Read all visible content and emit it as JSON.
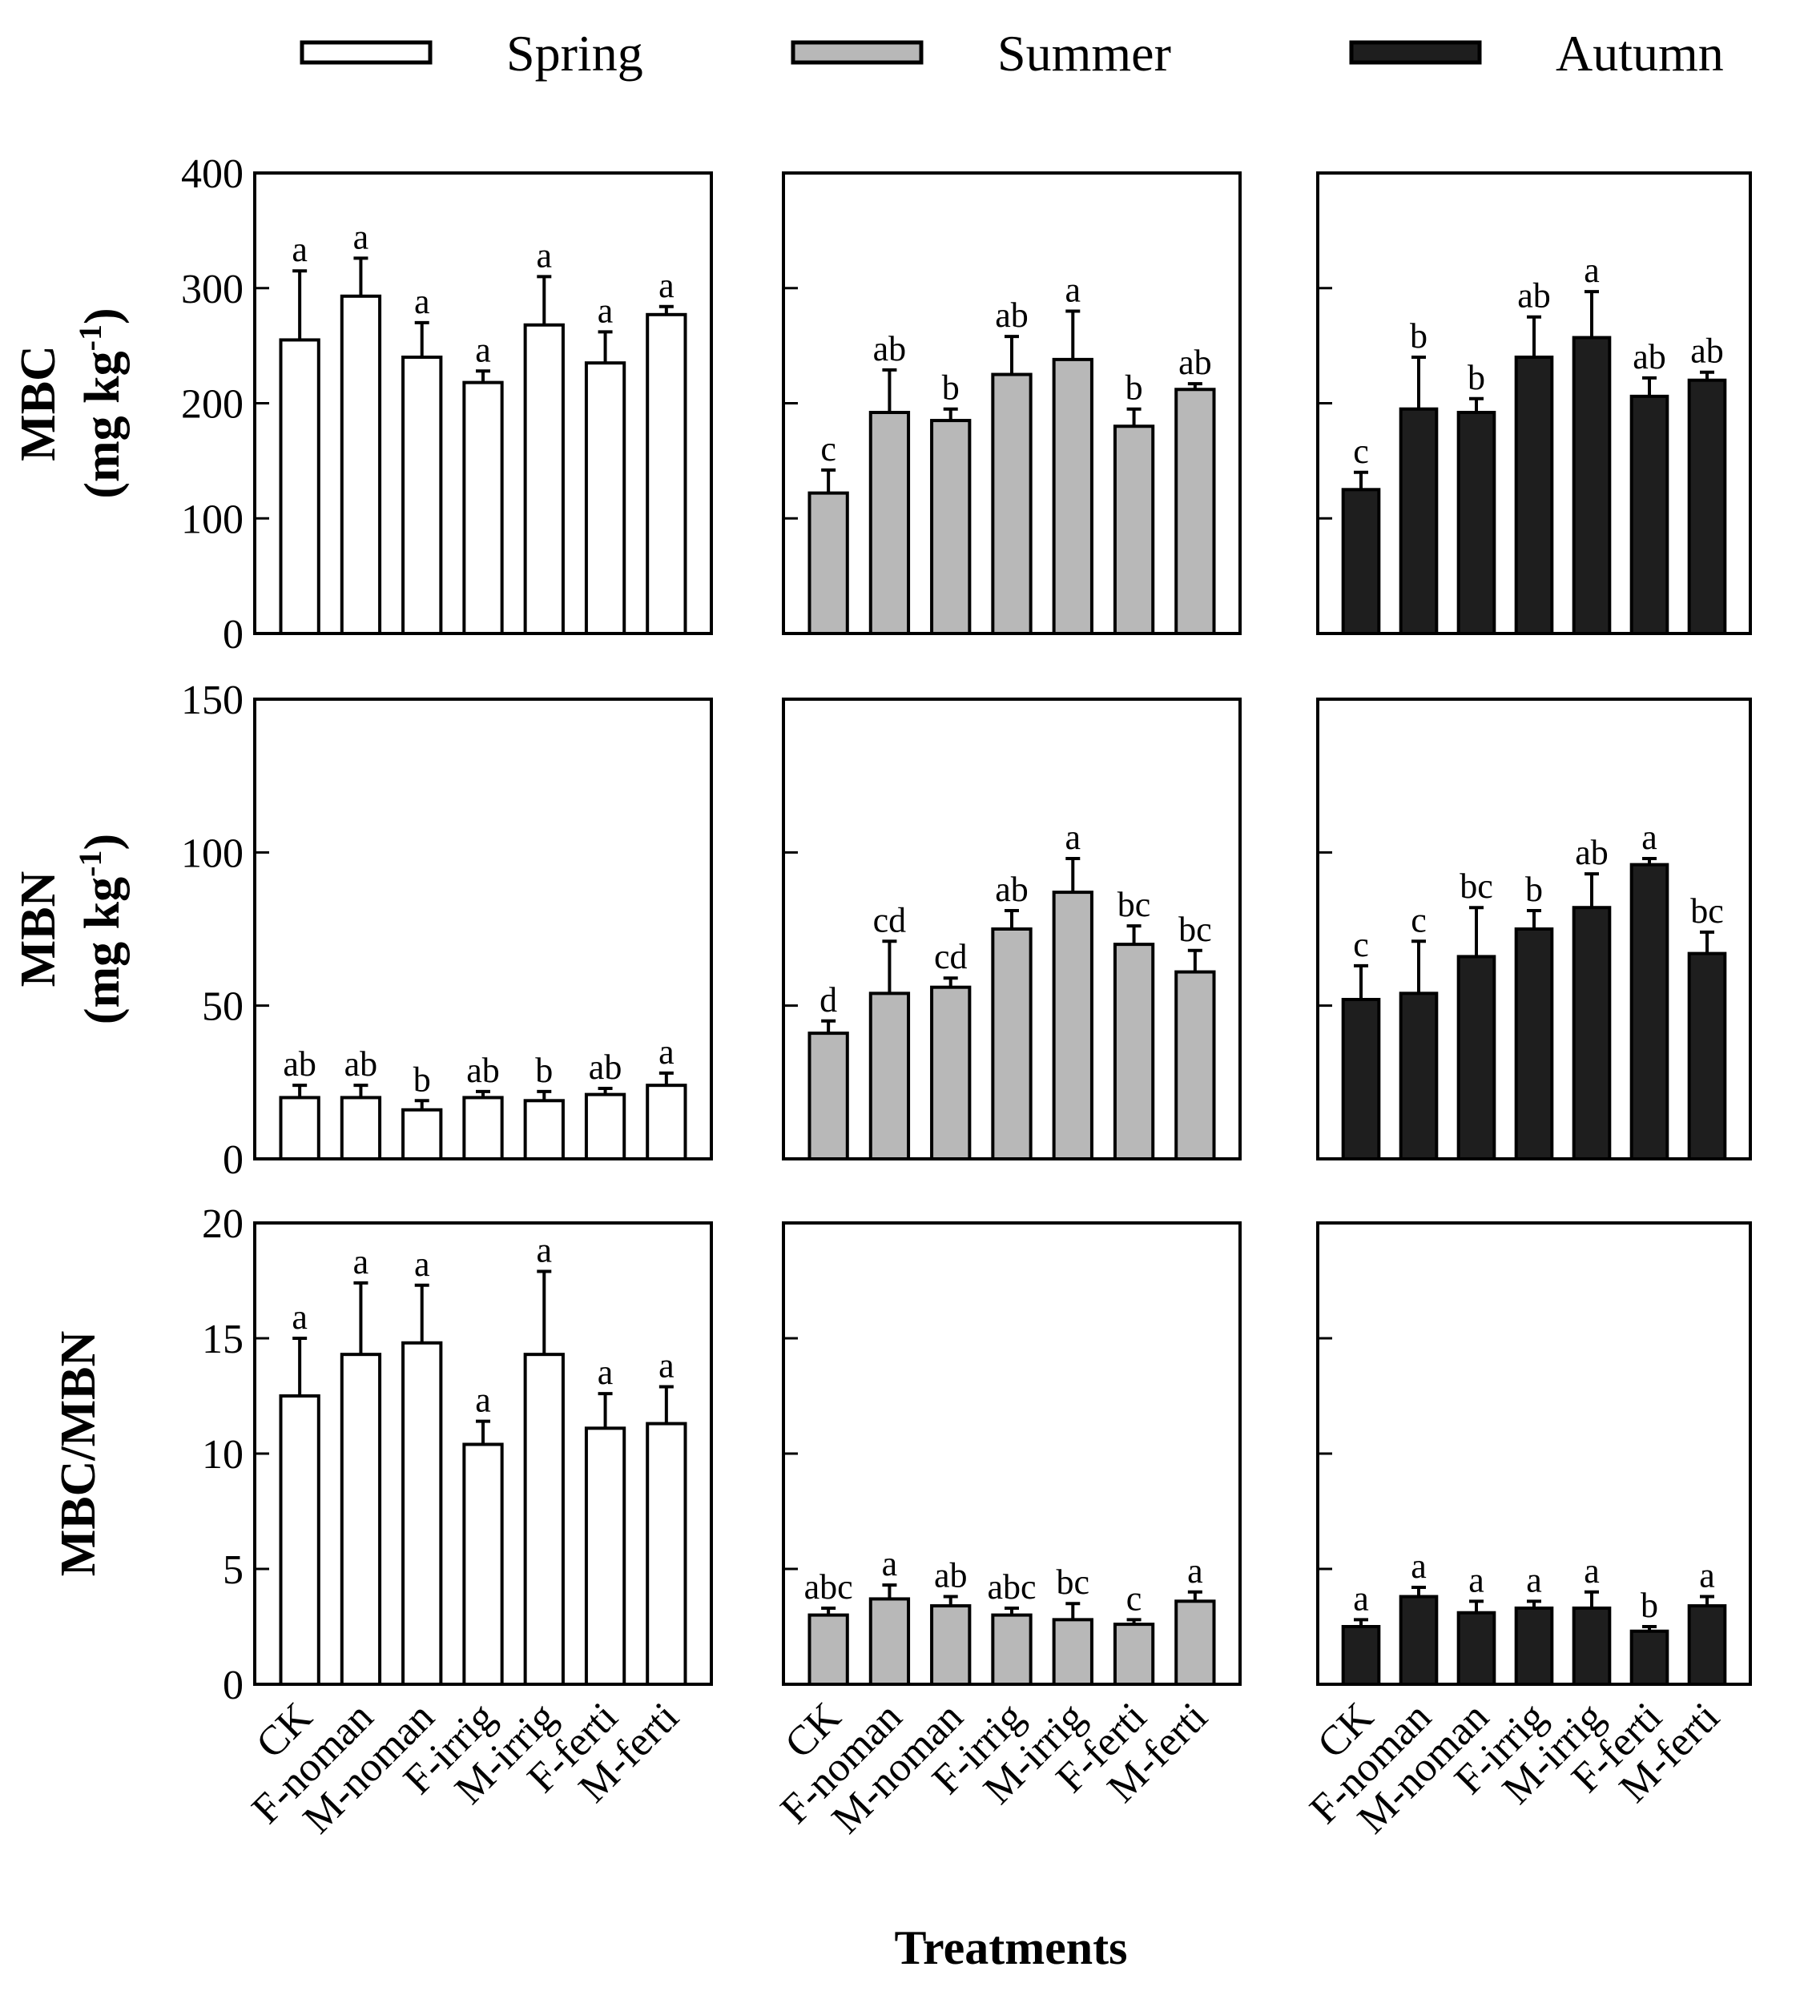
{
  "chart_data": {
    "type": "bar",
    "xlabel": "Treatments",
    "categories": [
      "CK",
      "F-noman",
      "M-noman",
      "F-irrig",
      "M-irrig",
      "F-ferti",
      "M-ferti"
    ],
    "legend": [
      {
        "name": "Spring",
        "color": "#ffffff"
      },
      {
        "name": "Summer",
        "color": "#b8b8b8"
      },
      {
        "name": "Autumn",
        "color": "#1e1e1e"
      }
    ],
    "rows": [
      {
        "label": "MBC",
        "unit": "(mg kg-1)",
        "unit_prefix": "(mg kg",
        "unit_sup": "-1",
        "unit_suffix": ")",
        "ylim": [
          0,
          400
        ],
        "ticks": [
          "0",
          "100",
          "200",
          "300",
          "400"
        ],
        "series": [
          {
            "name": "Spring",
            "values": [
              255,
              293,
              240,
              218,
              268,
              235,
              277
            ],
            "errors": [
              60,
              33,
              30,
              10,
              42,
              27,
              7
            ],
            "letters": [
              "a",
              "a",
              "a",
              "a",
              "a",
              "a",
              "a"
            ]
          },
          {
            "name": "Summer",
            "values": [
              122,
              192,
              185,
              225,
              238,
              180,
              212
            ],
            "errors": [
              20,
              37,
              10,
              33,
              42,
              15,
              5
            ],
            "letters": [
              "c",
              "ab",
              "b",
              "ab",
              "a",
              "b",
              "ab"
            ]
          },
          {
            "name": "Autumn",
            "values": [
              125,
              195,
              192,
              240,
              257,
              206,
              220
            ],
            "errors": [
              15,
              45,
              12,
              35,
              40,
              16,
              7
            ],
            "letters": [
              "c",
              "b",
              "b",
              "ab",
              "a",
              "ab",
              "ab"
            ]
          }
        ]
      },
      {
        "label": "MBN",
        "unit": "(mg kg-1)",
        "unit_prefix": "(mg kg",
        "unit_sup": "-1",
        "unit_suffix": ")",
        "ylim": [
          0,
          150
        ],
        "ticks": [
          "0",
          "50",
          "100",
          "150"
        ],
        "series": [
          {
            "name": "Spring",
            "values": [
              20,
              20,
              16,
              20,
              19,
              21,
              24
            ],
            "errors": [
              4,
              4,
              3,
              2,
              3,
              2,
              4
            ],
            "letters": [
              "ab",
              "ab",
              "b",
              "ab",
              "b",
              "ab",
              "a"
            ]
          },
          {
            "name": "Summer",
            "values": [
              41,
              54,
              56,
              75,
              87,
              70,
              61
            ],
            "errors": [
              4,
              17,
              3,
              6,
              11,
              6,
              7
            ],
            "letters": [
              "d",
              "cd",
              "cd",
              "ab",
              "a",
              "bc",
              "bc"
            ]
          },
          {
            "name": "Autumn",
            "values": [
              52,
              54,
              66,
              75,
              82,
              96,
              67
            ],
            "errors": [
              11,
              17,
              16,
              6,
              11,
              2,
              7
            ],
            "letters": [
              "c",
              "c",
              "bc",
              "b",
              "ab",
              "a",
              "bc"
            ]
          }
        ]
      },
      {
        "label": "MBC/MBN",
        "unit": "",
        "unit_prefix": "",
        "unit_sup": "",
        "unit_suffix": "",
        "ylim": [
          0,
          20
        ],
        "ticks": [
          "0",
          "5",
          "10",
          "15",
          "20"
        ],
        "series": [
          {
            "name": "Spring",
            "values": [
              12.5,
              14.3,
              14.8,
              10.4,
              14.3,
              11.1,
              11.3
            ],
            "errors": [
              2.5,
              3.1,
              2.5,
              1.0,
              3.6,
              1.5,
              1.6
            ],
            "letters": [
              "a",
              "a",
              "a",
              "a",
              "a",
              "a",
              "a"
            ]
          },
          {
            "name": "Summer",
            "values": [
              3.0,
              3.7,
              3.4,
              3.0,
              2.8,
              2.6,
              3.6
            ],
            "errors": [
              0.3,
              0.6,
              0.4,
              0.3,
              0.7,
              0.2,
              0.4
            ],
            "letters": [
              "abc",
              "a",
              "ab",
              "abc",
              "bc",
              "c",
              "a"
            ]
          },
          {
            "name": "Autumn",
            "values": [
              2.5,
              3.8,
              3.1,
              3.3,
              3.3,
              2.3,
              3.4
            ],
            "errors": [
              0.3,
              0.4,
              0.5,
              0.3,
              0.7,
              0.2,
              0.4
            ],
            "letters": [
              "a",
              "a",
              "a",
              "a",
              "a",
              "b",
              "a"
            ]
          }
        ]
      }
    ]
  }
}
